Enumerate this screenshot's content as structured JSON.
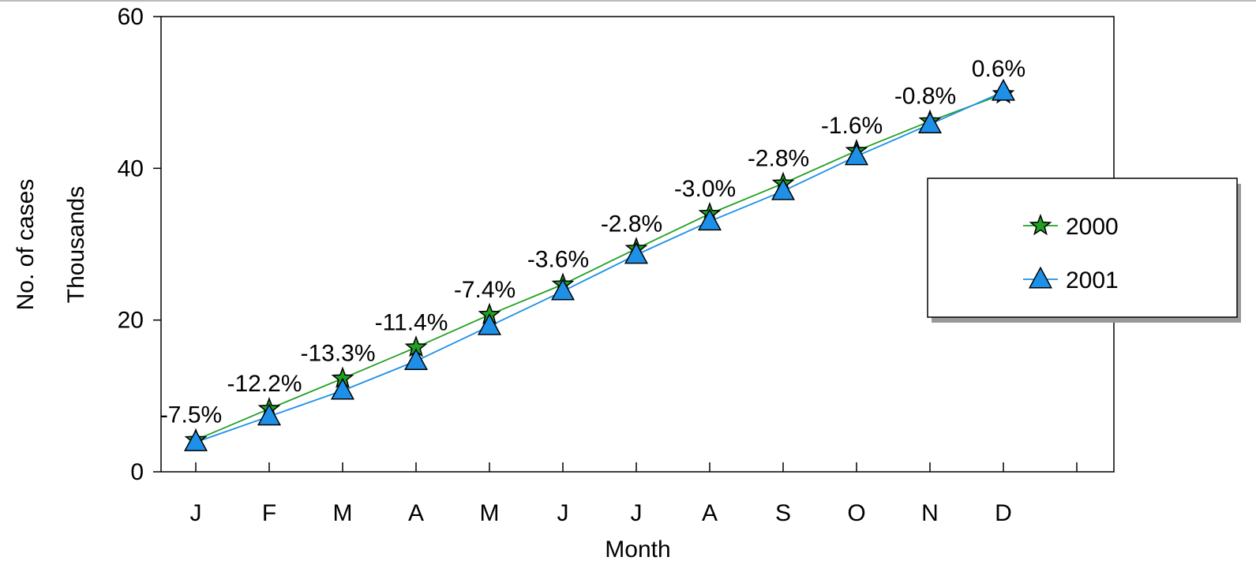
{
  "chart_data": {
    "type": "line",
    "title": "",
    "xlabel": "Month",
    "ylabel": "No. of cases",
    "ylabel_units": "Thousands",
    "categories": [
      "J",
      "F",
      "M",
      "A",
      "M",
      "J",
      "J",
      "A",
      "S",
      "O",
      "N",
      "D"
    ],
    "ylim": [
      0,
      60
    ],
    "yticks": [
      "0",
      "20",
      "40",
      "60"
    ],
    "grid": false,
    "legend_position": "right",
    "series": [
      {
        "name": "2000",
        "marker": "star",
        "color": "#22a022",
        "values": [
          4.2,
          8.3,
          12.3,
          16.4,
          20.7,
          24.7,
          29.4,
          34.0,
          38.0,
          42.3,
          46.2,
          49.8
        ]
      },
      {
        "name": "2001",
        "marker": "triangle",
        "color": "#1e90e8",
        "values": [
          3.9,
          7.3,
          10.7,
          14.6,
          19.2,
          23.8,
          28.6,
          33.0,
          37.0,
          41.6,
          45.8,
          50.1
        ]
      }
    ],
    "annotations": [
      "-7.5%",
      "-12.2%",
      "-13.3%",
      "-11.4%",
      "-7.4%",
      "-3.6%",
      "-2.8%",
      "-3.0%",
      "-2.8%",
      "-1.6%",
      "-0.8%",
      "0.6%"
    ]
  }
}
